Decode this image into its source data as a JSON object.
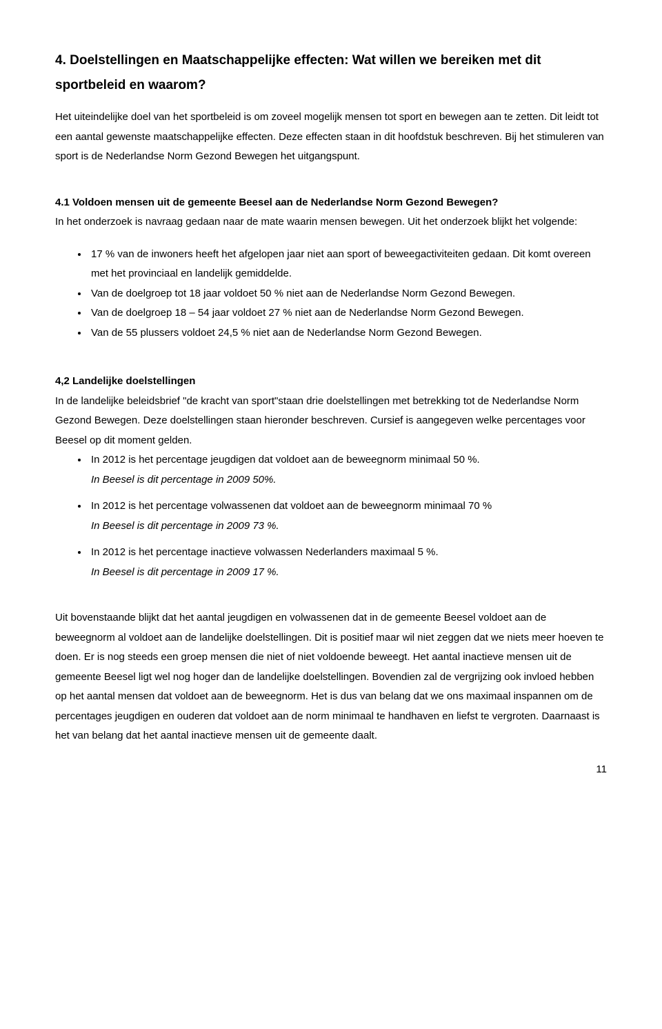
{
  "heading": "4. Doelstellingen en Maatschappelijke effecten: Wat willen we bereiken met dit sportbeleid en waarom?",
  "intro": "Het uiteindelijke doel van het sportbeleid is om zoveel mogelijk mensen tot sport en bewegen aan te zetten. Dit leidt tot een aantal gewenste maatschappelijke effecten. Deze effecten staan in dit hoofdstuk beschreven. Bij het stimuleren van sport is de Nederlandse Norm Gezond Bewegen het uitgangspunt.",
  "sec41": {
    "title": "4.1 Voldoen mensen uit de gemeente Beesel aan de Nederlandse Norm Gezond Bewegen?",
    "lead": "In het onderzoek is navraag gedaan naar de mate waarin mensen bewegen. Uit het onderzoek blijkt het volgende:",
    "bullets": [
      "17 % van de inwoners heeft het afgelopen jaar niet aan sport of beweegactiviteiten gedaan. Dit komt overeen met het provinciaal en landelijk gemiddelde.",
      "Van de doelgroep tot 18 jaar voldoet 50 % niet aan de Nederlandse Norm Gezond Bewegen.",
      "Van de doelgroep 18 – 54 jaar voldoet 27 % niet aan de Nederlandse Norm Gezond Bewegen.",
      "Van de 55 plussers voldoet 24,5 % niet aan de Nederlandse Norm Gezond Bewegen."
    ]
  },
  "sec42": {
    "title": "4,2 Landelijke doelstellingen",
    "lead": "In de landelijke beleidsbrief \"de kracht van sport\"staan drie doelstellingen met betrekking tot de Nederlandse Norm Gezond Bewegen. Deze doelstellingen staan hieronder beschreven. Cursief is aangegeven welke percentages voor Beesel op dit moment gelden.",
    "goals": [
      {
        "line": "In 2012 is het percentage jeugdigen dat voldoet aan de beweegnorm minimaal 50 %.",
        "italic": "In Beesel is dit percentage in 2009 50%."
      },
      {
        "line": "In 2012 is het percentage volwassenen dat voldoet aan de beweegnorm minimaal 70 %",
        "italic": "In Beesel is dit percentage in 2009 73 %."
      },
      {
        "line": "In 2012 is het percentage inactieve volwassen Nederlanders maximaal 5 %.",
        "italic": "In Beesel is dit percentage in 2009 17 %."
      }
    ],
    "closing": "Uit bovenstaande blijkt dat het aantal jeugdigen en volwassenen dat in de gemeente Beesel voldoet aan de beweegnorm al voldoet aan de landelijke doelstellingen. Dit is positief maar wil niet zeggen dat we niets meer hoeven te doen. Er is nog steeds een groep mensen die niet of niet voldoende beweegt. Het aantal inactieve mensen uit de gemeente Beesel ligt wel nog hoger dan de landelijke doelstellingen. Bovendien zal de vergrijzing ook invloed hebben op het aantal mensen dat voldoet aan de beweegnorm. Het is dus van belang dat we ons maximaal inspannen om de percentages jeugdigen en ouderen dat voldoet aan de norm minimaal te handhaven en liefst te vergroten. Daarnaast is het van belang dat het aantal inactieve mensen uit de gemeente daalt."
  },
  "pageNumber": "11"
}
